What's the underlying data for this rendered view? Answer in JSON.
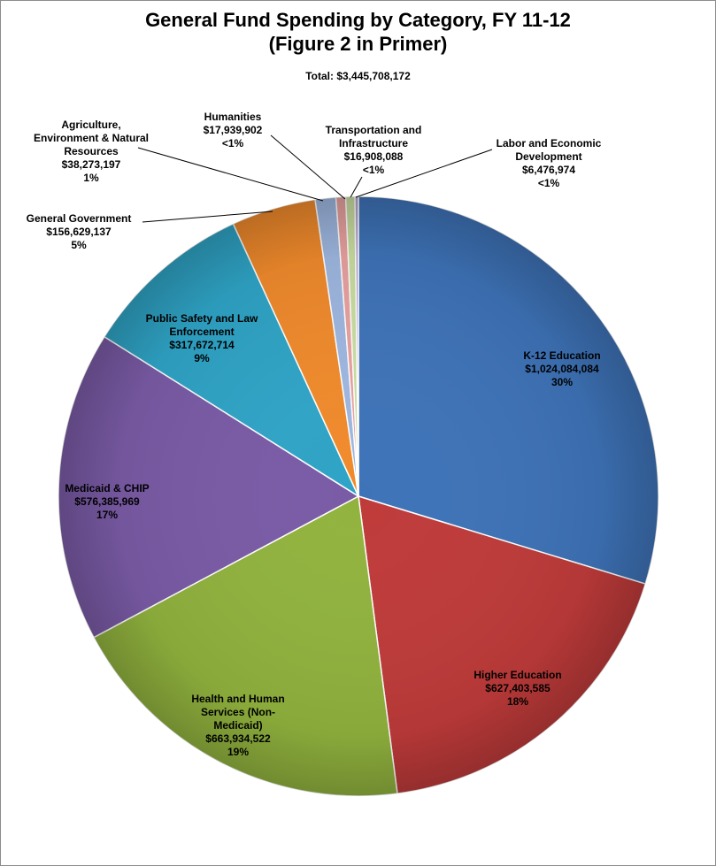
{
  "chart_data": {
    "type": "pie",
    "title_line1": "General Fund Spending by Category, FY 11-12",
    "title_line2": "(Figure 2 in Primer)",
    "subtitle": "Total: $3,445,708,172",
    "slices": [
      {
        "name": "K-12 Education",
        "value": 1024084084,
        "amount_label": "$1,024,084,084",
        "percent_label": "30%",
        "color": "#3E73B8"
      },
      {
        "name": "Higher Education",
        "value": 627403585,
        "amount_label": "$627,403,585",
        "percent_label": "18%",
        "color": "#BF3B3A"
      },
      {
        "name": "Health and Human Services (Non-Medicaid)",
        "value": 663934522,
        "amount_label": "$663,934,522",
        "percent_label": "19%",
        "color": "#91B33E"
      },
      {
        "name": "Medicaid & CHIP",
        "value": 576385969,
        "amount_label": "$576,385,969",
        "percent_label": "17%",
        "color": "#7A5BA6"
      },
      {
        "name": "Public Safety and Law Enforcement",
        "value": 317672714,
        "amount_label": "$317,672,714",
        "percent_label": "9%",
        "color": "#2FA4C6"
      },
      {
        "name": "General Government",
        "value": 156629137,
        "amount_label": "$156,629,137",
        "percent_label": "5%",
        "color": "#F08A2C"
      },
      {
        "name": "Agriculture, Environment & Natural Resources",
        "value": 38273197,
        "amount_label": "$38,273,197",
        "percent_label": "1%",
        "color": "#9EB7E0"
      },
      {
        "name": "Humanities",
        "value": 17939902,
        "amount_label": "$17,939,902",
        "percent_label": "<1%",
        "color": "#E8A19F"
      },
      {
        "name": "Transportation and Infrastructure",
        "value": 16908088,
        "amount_label": "$16,908,088",
        "percent_label": "<1%",
        "color": "#C9DDA0"
      },
      {
        "name": "Labor and Economic Development",
        "value": 6476974,
        "amount_label": "$6,476,974",
        "percent_label": "<1%",
        "color": "#B6A5D4"
      }
    ]
  }
}
